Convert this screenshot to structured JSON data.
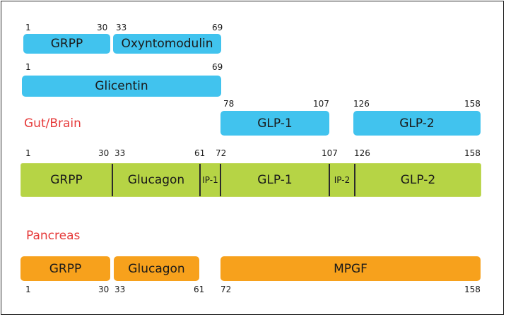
{
  "rows": {
    "row1": {
      "bars": [
        {
          "label": "GRPP"
        },
        {
          "label": "Oxyntomodulin"
        }
      ],
      "numbers": [
        "1",
        "30",
        "33",
        "69"
      ]
    },
    "row2": {
      "bars": [
        {
          "label": "Glicentin"
        }
      ],
      "numbers": [
        "1",
        "69"
      ]
    },
    "gut_brain": {
      "title": "Gut/Brain",
      "bars": [
        {
          "label": "GLP-1"
        },
        {
          "label": "GLP-2"
        }
      ],
      "numbers": [
        "78",
        "107",
        "126",
        "158"
      ]
    },
    "proglucagon": {
      "segments": [
        "GRPP",
        "Glucagon",
        "IP-1",
        "GLP-1",
        "IP-2",
        "GLP-2"
      ],
      "numbers": [
        "1",
        "30",
        "33",
        "61",
        "72",
        "107",
        "126",
        "158"
      ]
    },
    "pancreas": {
      "title": "Pancreas",
      "bars": [
        {
          "label": "GRPP"
        },
        {
          "label": "Glucagon"
        },
        {
          "label": "MPGF"
        }
      ],
      "numbers": [
        "1",
        "30",
        "33",
        "61",
        "72",
        "158"
      ]
    }
  },
  "colors": {
    "blue": "#41c3ee",
    "green": "#b6d445",
    "orange": "#f7a11c",
    "section_title": "#e63a3a"
  }
}
